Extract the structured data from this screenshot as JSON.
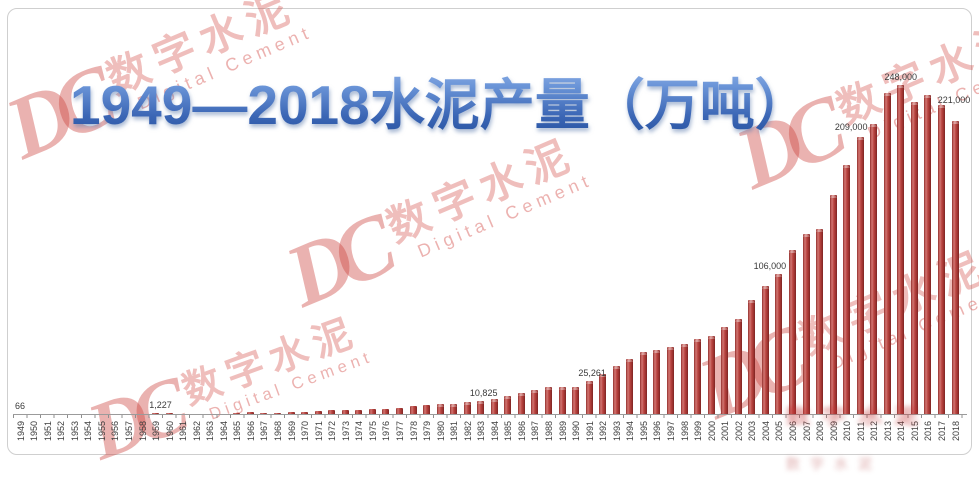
{
  "title": {
    "text": "1949—2018水泥产量（万吨）"
  },
  "watermark": {
    "dc": "DC",
    "cn": "数字水泥",
    "en": "Digital Cement"
  },
  "chart_data": {
    "type": "bar",
    "title": "1949—2018水泥产量（万吨）",
    "unit": "万吨",
    "xlabel": "",
    "ylabel": "",
    "ylim": [
      0,
      260000
    ],
    "grid": false,
    "legend": false,
    "bar_color": "#b23b38",
    "x": [
      1949,
      1950,
      1951,
      1952,
      1953,
      1954,
      1955,
      1956,
      1957,
      1958,
      1959,
      1960,
      1961,
      1962,
      1963,
      1964,
      1965,
      1966,
      1967,
      1968,
      1969,
      1970,
      1971,
      1972,
      1973,
      1974,
      1975,
      1976,
      1977,
      1978,
      1979,
      1980,
      1981,
      1982,
      1983,
      1984,
      1985,
      1986,
      1987,
      1988,
      1989,
      1990,
      1991,
      1992,
      1993,
      1994,
      1995,
      1996,
      1997,
      1998,
      1999,
      2000,
      2001,
      2002,
      2003,
      2004,
      2005,
      2006,
      2007,
      2008,
      2009,
      2010,
      2011,
      2012,
      2013,
      2014,
      2015,
      2016,
      2017,
      2018
    ],
    "values": [
      66,
      141,
      249,
      286,
      386,
      460,
      450,
      639,
      686,
      930,
      1227,
      1565,
      621,
      600,
      794,
      873,
      1634,
      2015,
      1387,
      1413,
      1980,
      2575,
      3113,
      3717,
      3835,
      3740,
      4626,
      4670,
      5565,
      6524,
      7390,
      7986,
      8290,
      9520,
      10825,
      12302,
      14595,
      16606,
      18625,
      21014,
      21029,
      20971,
      25261,
      30822,
      36788,
      42118,
      47561,
      49119,
      51174,
      53600,
      57300,
      59700,
      66104,
      72500,
      86208,
      96682,
      106000,
      124000,
      136000,
      140000,
      165000,
      188000,
      209000,
      219000,
      242000,
      248000,
      235000,
      240300,
      233000,
      221000
    ],
    "data_labels": [
      {
        "year": 1949,
        "text": "66"
      },
      {
        "year": 1959,
        "text": "1,227"
      },
      {
        "year": 1983,
        "text": "10,825"
      },
      {
        "year": 1991,
        "text": "25,261"
      },
      {
        "year": 2005,
        "text": "106,000"
      },
      {
        "year": 2011,
        "text": "209,000"
      },
      {
        "year": 2014,
        "text": "248,000"
      },
      {
        "year": 2018,
        "text": "221,000"
      }
    ]
  }
}
